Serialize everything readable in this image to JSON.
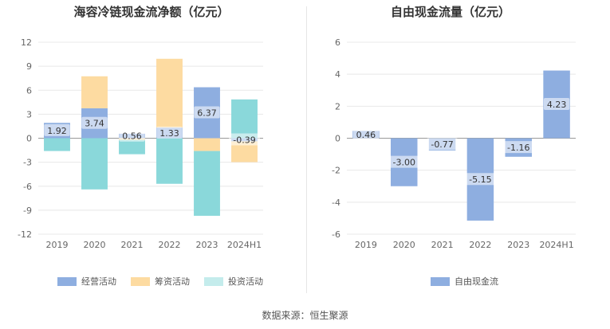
{
  "charts": [
    {
      "title": "海容冷链现金流净额（亿元）"
    },
    {
      "title": "自由现金流量（亿元）"
    }
  ],
  "source": "数据来源：恒生聚源",
  "colors": {
    "operating": "#8eaee0",
    "financing": "#fddba1",
    "investing": "#8ad8da",
    "fcf": "#8eaee0",
    "grid": "#e8e8e8",
    "axis": "#999999",
    "label_bg": "#ffffff"
  },
  "chart_data": [
    {
      "type": "bar",
      "stacked": true,
      "title": "海容冷链现金流净额（亿元）",
      "categories": [
        "2019",
        "2020",
        "2021",
        "2022",
        "2023",
        "2024H1"
      ],
      "ylim": [
        -12,
        12
      ],
      "yticks": [
        12,
        9,
        6,
        3,
        0,
        -3,
        -6,
        -9,
        -12
      ],
      "grid": true,
      "legend_position": "bottom",
      "series": [
        {
          "name": "经营活动",
          "values": [
            1.92,
            3.74,
            0.56,
            1.33,
            6.37,
            -0.39
          ]
        },
        {
          "name": "筹资活动",
          "values": [
            0,
            4.0,
            -0.2,
            8.6,
            -1.6,
            -2.6
          ]
        },
        {
          "name": "投资活动",
          "values": [
            -1.6,
            -6.4,
            -1.8,
            -5.7,
            -8.1,
            4.85
          ]
        }
      ],
      "data_labels": [
        "1.92",
        "3.74",
        "0.56",
        "1.33",
        "6.37",
        "-0.39"
      ]
    },
    {
      "type": "bar",
      "title": "自由现金流量（亿元）",
      "categories": [
        "2019",
        "2020",
        "2021",
        "2022",
        "2023",
        "2024H1"
      ],
      "ylim": [
        -6,
        6
      ],
      "yticks": [
        6,
        4,
        2,
        0,
        -2,
        -4,
        -6
      ],
      "grid": true,
      "legend_position": "bottom",
      "series": [
        {
          "name": "自由现金流",
          "values": [
            0.46,
            -3.0,
            -0.77,
            -5.15,
            -1.16,
            4.23
          ]
        }
      ],
      "data_labels": [
        "0.46",
        "-3.00",
        "-0.77",
        "-5.15",
        "-1.16",
        "4.23"
      ]
    }
  ]
}
